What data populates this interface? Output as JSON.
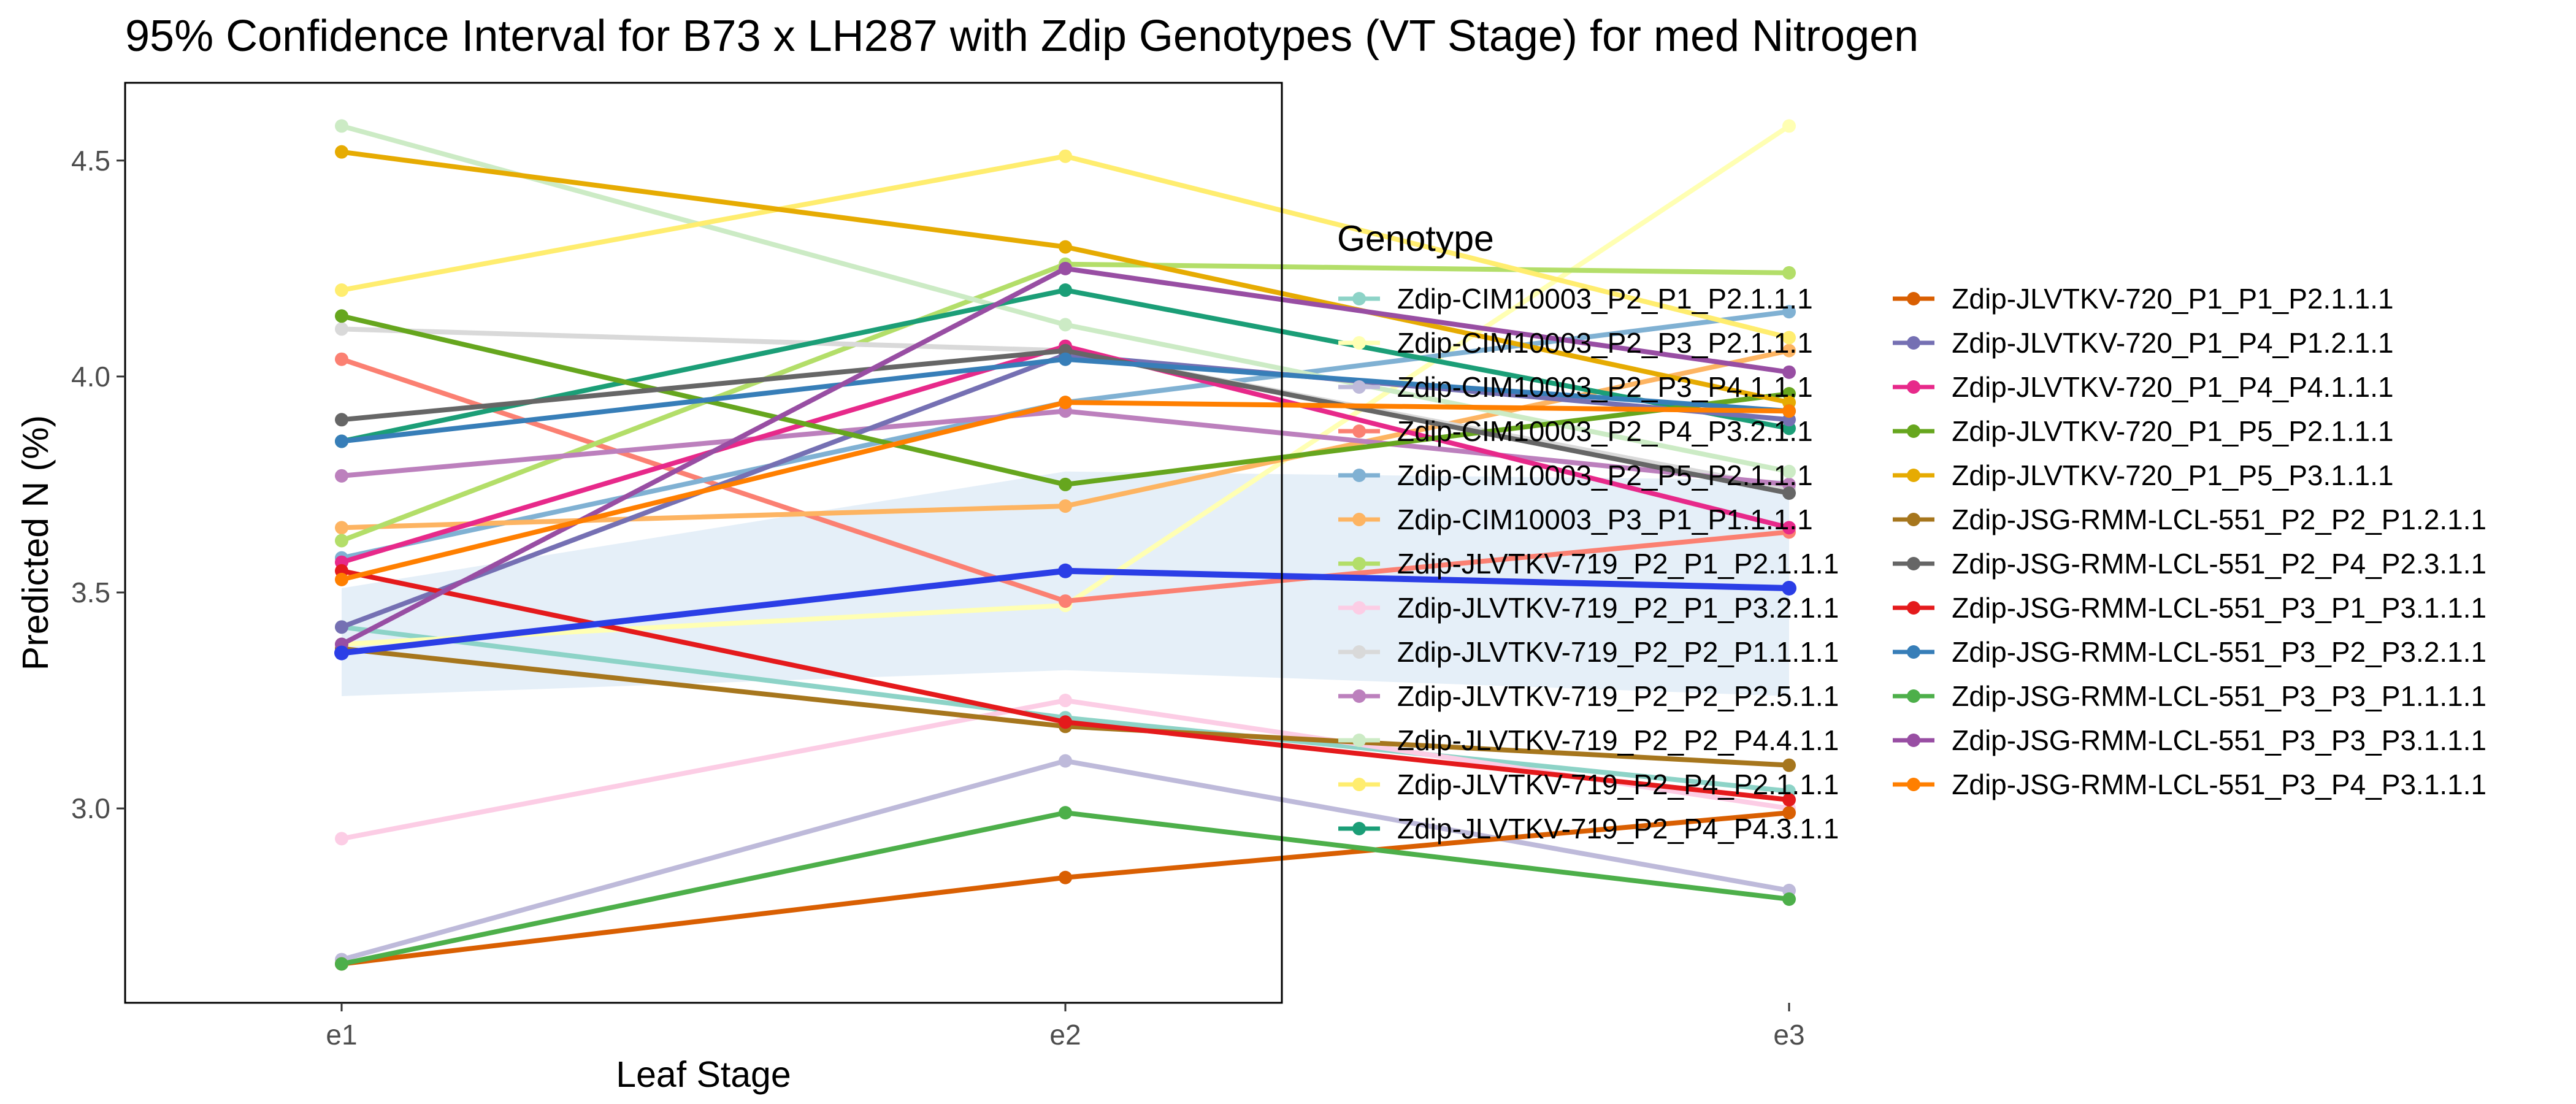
{
  "chart_data": {
    "type": "line",
    "title": "95% Confidence Interval for B73 x LH287 with Zdip Genotypes (VT Stage) for med Nitrogen",
    "xlabel": "Leaf Stage",
    "ylabel": "Predicted N (%)",
    "categories": [
      "e1",
      "e2",
      "e3"
    ],
    "ylim": [
      2.55,
      4.68
    ],
    "yticks": [
      3.0,
      3.5,
      4.0,
      4.5
    ],
    "ytick_labels": [
      "3.0",
      "3.5",
      "4.0",
      "4.5"
    ],
    "grid": false,
    "legend_title": "Genotype",
    "legend_position": "right",
    "confidence_band": {
      "lower": [
        3.26,
        3.32,
        3.26
      ],
      "upper": [
        3.51,
        3.78,
        3.76
      ],
      "color": "#c6dbef"
    },
    "mean_line": {
      "values": [
        3.36,
        3.55,
        3.51
      ],
      "color": "#2b3ee6"
    },
    "series": [
      {
        "name": "Zdip-CIM10003_P2_P1_P2.1.1.1",
        "color": "#8dd3c7",
        "values": [
          3.42,
          3.21,
          3.04
        ]
      },
      {
        "name": "Zdip-CIM10003_P2_P3_P2.1.1.1",
        "color": "#ffffb3",
        "values": [
          3.38,
          3.47,
          4.58
        ]
      },
      {
        "name": "Zdip-CIM10003_P2_P3_P4.1.1.1",
        "color": "#bebada",
        "values": [
          2.65,
          3.11,
          2.81
        ]
      },
      {
        "name": "Zdip-CIM10003_P2_P4_P3.2.1.1",
        "color": "#fb8072",
        "values": [
          4.04,
          3.48,
          3.64
        ]
      },
      {
        "name": "Zdip-CIM10003_P2_P5_P2.1.1.1",
        "color": "#80b1d3",
        "values": [
          3.58,
          3.94,
          4.15
        ]
      },
      {
        "name": "Zdip-CIM10003_P3_P1_P1.1.1.1",
        "color": "#fdb462",
        "values": [
          3.65,
          3.7,
          4.06
        ]
      },
      {
        "name": "Zdip-JLVTKV-719_P2_P1_P2.1.1.1",
        "color": "#b3de69",
        "values": [
          3.62,
          4.26,
          4.24
        ]
      },
      {
        "name": "Zdip-JLVTKV-719_P2_P1_P3.2.1.1",
        "color": "#fccde5",
        "values": [
          2.93,
          3.25,
          3.0
        ]
      },
      {
        "name": "Zdip-JLVTKV-719_P2_P2_P1.1.1.1",
        "color": "#d9d9d9",
        "values": [
          4.11,
          4.06,
          3.74
        ]
      },
      {
        "name": "Zdip-JLVTKV-719_P2_P2_P2.5.1.1",
        "color": "#bc80bd",
        "values": [
          3.77,
          3.92,
          3.75
        ]
      },
      {
        "name": "Zdip-JLVTKV-719_P2_P2_P4.4.1.1",
        "color": "#ccebc5",
        "values": [
          4.58,
          4.12,
          3.78
        ]
      },
      {
        "name": "Zdip-JLVTKV-719_P2_P4_P2.1.1.1",
        "color": "#ffed6f",
        "values": [
          4.2,
          4.51,
          4.09
        ]
      },
      {
        "name": "Zdip-JLVTKV-719_P2_P4_P4.3.1.1",
        "color": "#1b9e77",
        "values": [
          3.85,
          4.2,
          3.88
        ]
      },
      {
        "name": "Zdip-JLVTKV-720_P1_P1_P2.1.1.1",
        "color": "#d95f02",
        "values": [
          2.64,
          2.84,
          2.99
        ]
      },
      {
        "name": "Zdip-JLVTKV-720_P1_P4_P1.2.1.1",
        "color": "#7570b3",
        "values": [
          3.42,
          4.05,
          3.9
        ]
      },
      {
        "name": "Zdip-JLVTKV-720_P1_P4_P4.1.1.1",
        "color": "#e7298a",
        "values": [
          3.57,
          4.07,
          3.65
        ]
      },
      {
        "name": "Zdip-JLVTKV-720_P1_P5_P2.1.1.1",
        "color": "#66a61e",
        "values": [
          4.14,
          3.75,
          3.96
        ]
      },
      {
        "name": "Zdip-JLVTKV-720_P1_P5_P3.1.1.1",
        "color": "#e6ab02",
        "values": [
          4.52,
          4.3,
          3.94
        ]
      },
      {
        "name": "Zdip-JSG-RMM-LCL-551_P2_P2_P1.2.1.1",
        "color": "#a6761d",
        "values": [
          3.37,
          3.19,
          3.1
        ]
      },
      {
        "name": "Zdip-JSG-RMM-LCL-551_P2_P4_P2.3.1.1",
        "color": "#666666",
        "values": [
          3.9,
          4.06,
          3.73
        ]
      },
      {
        "name": "Zdip-JSG-RMM-LCL-551_P3_P1_P3.1.1.1",
        "color": "#e41a1c",
        "values": [
          3.55,
          3.2,
          3.02
        ]
      },
      {
        "name": "Zdip-JSG-RMM-LCL-551_P3_P2_P3.2.1.1",
        "color": "#377eb8",
        "values": [
          3.85,
          4.04,
          3.92
        ]
      },
      {
        "name": "Zdip-JSG-RMM-LCL-551_P3_P3_P1.1.1.1",
        "color": "#4daf4a",
        "values": [
          2.64,
          2.99,
          2.79
        ]
      },
      {
        "name": "Zdip-JSG-RMM-LCL-551_P3_P3_P3.1.1.1",
        "color": "#984ea3",
        "values": [
          3.38,
          4.25,
          4.01
        ]
      },
      {
        "name": "Zdip-JSG-RMM-LCL-551_P3_P4_P3.1.1.1",
        "color": "#ff7f00",
        "values": [
          3.53,
          3.94,
          3.92
        ]
      }
    ]
  }
}
